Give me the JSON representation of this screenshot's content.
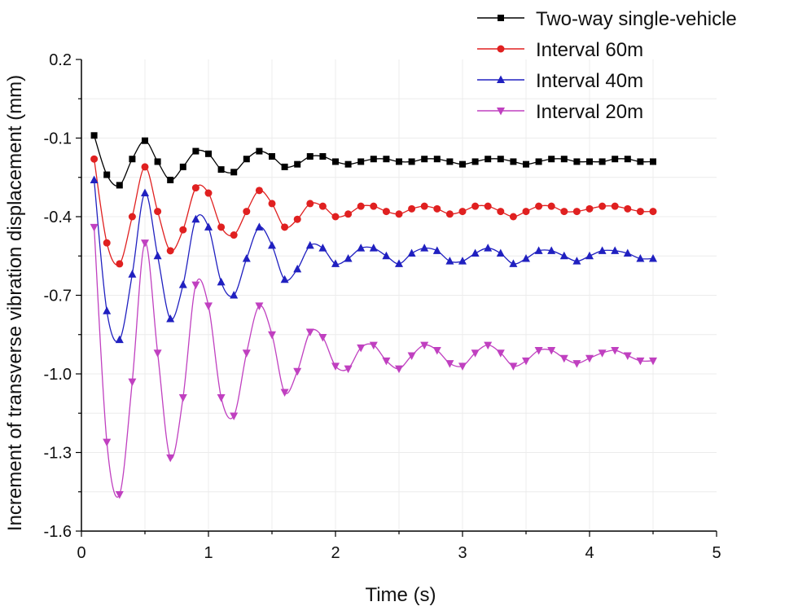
{
  "chart_data": {
    "type": "line",
    "title": "",
    "xlabel": "Time (s)",
    "ylabel": "Increment of transverse vibration displacement (mm)",
    "xlim": [
      0,
      5
    ],
    "ylim": [
      -1.6,
      0.2
    ],
    "x_ticks": [
      0,
      1,
      2,
      3,
      4,
      5
    ],
    "x_tick_labels": [
      "0",
      "1",
      "2",
      "3",
      "4",
      "5"
    ],
    "y_ticks": [
      0.2,
      -0.1,
      -0.4,
      -0.7,
      -1.0,
      -1.3,
      -1.6
    ],
    "y_tick_labels": [
      "0.2",
      "-0.1",
      "-0.4",
      "-0.7",
      "-1.0",
      "-1.3",
      "-1.6"
    ],
    "grid": true,
    "legend_position": "top-right",
    "x": [
      0.1,
      0.2,
      0.3,
      0.4,
      0.5,
      0.6,
      0.7,
      0.8,
      0.9,
      1.0,
      1.1,
      1.2,
      1.3,
      1.4,
      1.5,
      1.6,
      1.7,
      1.8,
      1.9,
      2.0,
      2.1,
      2.2,
      2.3,
      2.4,
      2.5,
      2.6,
      2.7,
      2.8,
      2.9,
      3.0,
      3.1,
      3.2,
      3.3,
      3.4,
      3.5,
      3.6,
      3.7,
      3.8,
      3.9,
      4.0,
      4.1,
      4.2,
      4.3,
      4.4,
      4.5
    ],
    "series": [
      {
        "name": "Two-way single-vehicle",
        "color": "#000000",
        "marker": "square",
        "values": [
          -0.09,
          -0.24,
          -0.28,
          -0.18,
          -0.11,
          -0.19,
          -0.26,
          -0.21,
          -0.15,
          -0.16,
          -0.22,
          -0.23,
          -0.18,
          -0.15,
          -0.17,
          -0.21,
          -0.2,
          -0.17,
          -0.17,
          -0.19,
          -0.2,
          -0.19,
          -0.18,
          -0.18,
          -0.19,
          -0.19,
          -0.18,
          -0.18,
          -0.19,
          -0.2,
          -0.19,
          -0.18,
          -0.18,
          -0.19,
          -0.2,
          -0.19,
          -0.18,
          -0.18,
          -0.19,
          -0.19,
          -0.19,
          -0.18,
          -0.18,
          -0.19,
          -0.19
        ]
      },
      {
        "name": "Interval 60m",
        "color": "#e02020",
        "marker": "circle",
        "values": [
          -0.18,
          -0.5,
          -0.58,
          -0.4,
          -0.21,
          -0.38,
          -0.53,
          -0.45,
          -0.29,
          -0.31,
          -0.44,
          -0.47,
          -0.38,
          -0.3,
          -0.35,
          -0.44,
          -0.41,
          -0.35,
          -0.36,
          -0.4,
          -0.39,
          -0.36,
          -0.36,
          -0.38,
          -0.39,
          -0.37,
          -0.36,
          -0.37,
          -0.39,
          -0.38,
          -0.36,
          -0.36,
          -0.38,
          -0.4,
          -0.38,
          -0.36,
          -0.36,
          -0.38,
          -0.38,
          -0.37,
          -0.36,
          -0.36,
          -0.37,
          -0.38,
          -0.38
        ]
      },
      {
        "name": "Interval 40m",
        "color": "#2020c0",
        "marker": "triangle-up",
        "values": [
          -0.26,
          -0.76,
          -0.87,
          -0.62,
          -0.31,
          -0.55,
          -0.79,
          -0.66,
          -0.41,
          -0.44,
          -0.65,
          -0.7,
          -0.56,
          -0.44,
          -0.51,
          -0.64,
          -0.6,
          -0.51,
          -0.52,
          -0.58,
          -0.56,
          -0.52,
          -0.52,
          -0.55,
          -0.58,
          -0.54,
          -0.52,
          -0.53,
          -0.57,
          -0.57,
          -0.54,
          -0.52,
          -0.54,
          -0.58,
          -0.56,
          -0.53,
          -0.53,
          -0.55,
          -0.57,
          -0.55,
          -0.53,
          -0.53,
          -0.54,
          -0.56,
          -0.56
        ]
      },
      {
        "name": "Interval 20m",
        "color": "#c040c0",
        "marker": "triangle-down",
        "values": [
          -0.44,
          -1.26,
          -1.46,
          -1.03,
          -0.5,
          -0.92,
          -1.32,
          -1.09,
          -0.66,
          -0.74,
          -1.09,
          -1.16,
          -0.92,
          -0.74,
          -0.85,
          -1.07,
          -0.99,
          -0.84,
          -0.86,
          -0.97,
          -0.98,
          -0.9,
          -0.89,
          -0.95,
          -0.98,
          -0.93,
          -0.89,
          -0.91,
          -0.96,
          -0.97,
          -0.92,
          -0.89,
          -0.92,
          -0.97,
          -0.95,
          -0.91,
          -0.91,
          -0.94,
          -0.96,
          -0.94,
          -0.92,
          -0.91,
          -0.93,
          -0.95,
          -0.95
        ]
      }
    ]
  }
}
